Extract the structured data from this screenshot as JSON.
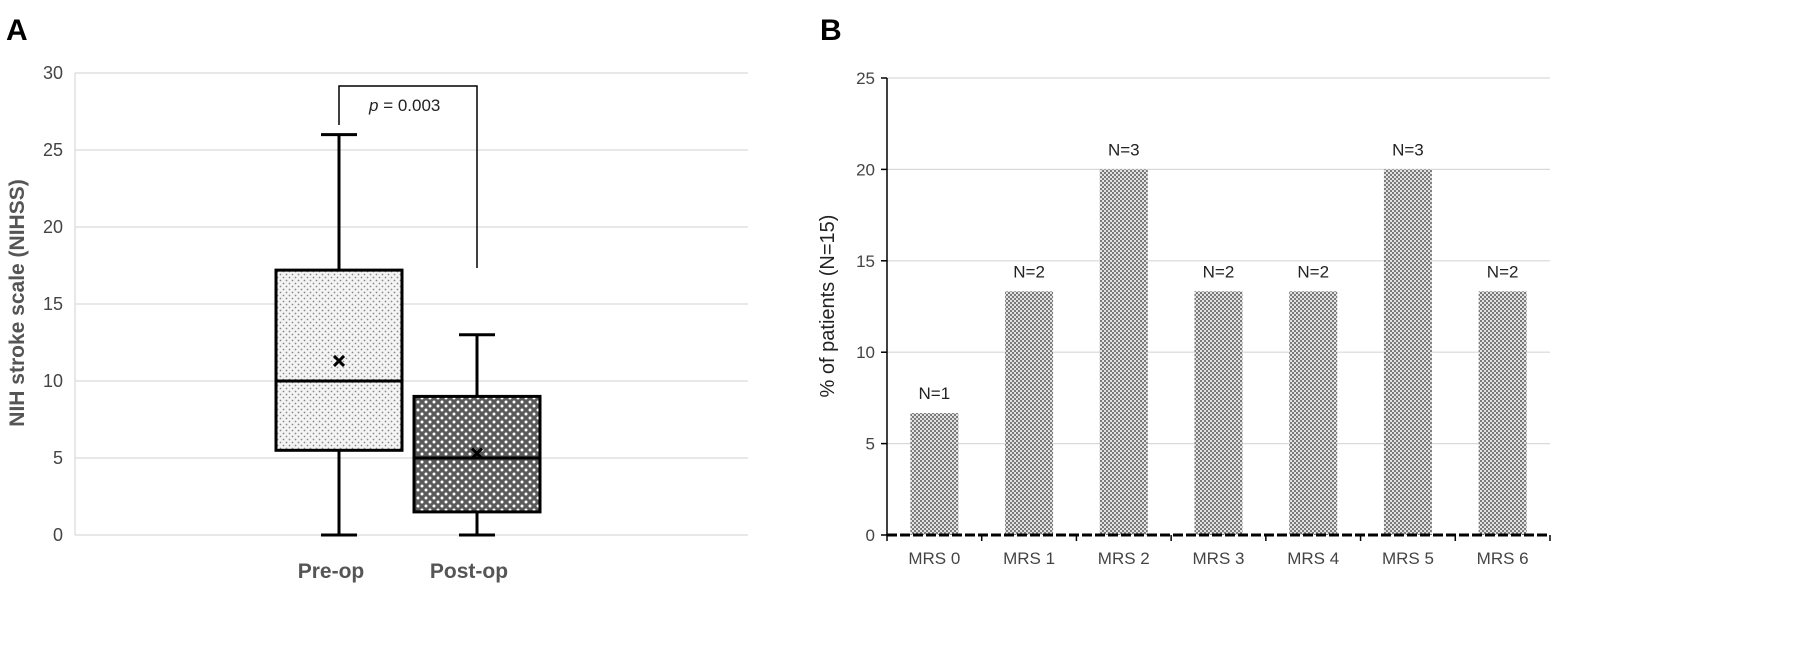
{
  "chart_data": [
    {
      "panel": "A",
      "type": "box",
      "ylabel": "NIH stroke scale (NIHSS)",
      "ylim": [
        0,
        30
      ],
      "yticks": [
        0,
        5,
        10,
        15,
        20,
        25,
        30
      ],
      "grid": true,
      "categories": [
        "Pre-op",
        "Post-op"
      ],
      "boxes": [
        {
          "category": "Pre-op",
          "min": 0,
          "q1": 5.5,
          "median": 10,
          "q3": 17.2,
          "max": 26,
          "mean": 11.3
        },
        {
          "category": "Post-op",
          "min": 0,
          "q1": 1.5,
          "median": 5,
          "q3": 9,
          "max": 13,
          "mean": 5.3
        }
      ],
      "annotation": {
        "p_symbol": "p",
        "text": " = 0.003",
        "between": [
          "Pre-op",
          "Post-op"
        ]
      }
    },
    {
      "panel": "B",
      "type": "bar",
      "ylabel": "% of patients (N=15)",
      "ylim": [
        0,
        25
      ],
      "yticks": [
        0,
        5,
        10,
        15,
        20,
        25
      ],
      "grid": true,
      "categories": [
        "MRS 0",
        "MRS 1",
        "MRS 2",
        "MRS 3",
        "MRS 4",
        "MRS 5",
        "MRS 6"
      ],
      "values": [
        6.67,
        13.33,
        20,
        13.33,
        13.33,
        20,
        13.33
      ],
      "data_labels": [
        "N=1",
        "N=2",
        "N=3",
        "N=2",
        "N=2",
        "N=3",
        "N=2"
      ]
    }
  ],
  "colors": {
    "grid": "#d9d9d9",
    "axis": "#000000",
    "box_pre": "#e6e6e6",
    "box_post": "#666666",
    "bar": "#9a9a9a"
  }
}
